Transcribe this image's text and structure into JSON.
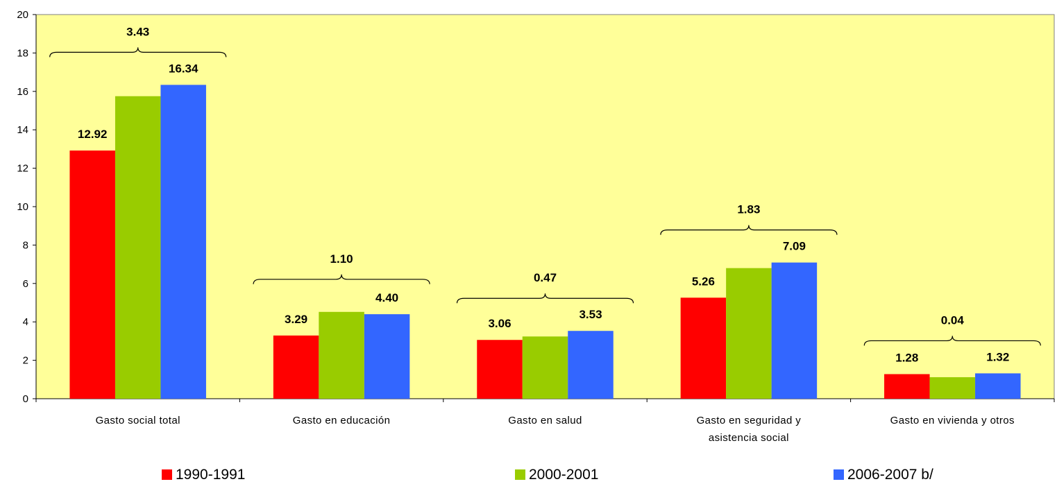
{
  "chart_data": {
    "type": "bar",
    "categories": [
      [
        "Gasto social total"
      ],
      [
        "Gasto en educación"
      ],
      [
        "Gasto en salud"
      ],
      [
        "Gasto en seguridad y",
        "asistencia social"
      ],
      [
        "Gasto en vivienda y otros"
      ]
    ],
    "series": [
      {
        "name": "1990-1991",
        "color": "#ff0000",
        "values": [
          12.92,
          3.29,
          3.06,
          5.26,
          1.28
        ],
        "labels": [
          "12.92",
          "3.29",
          "3.06",
          "5.26",
          "1.28"
        ]
      },
      {
        "name": "2000-2001",
        "color": "#99cc00",
        "values": [
          15.75,
          4.52,
          3.24,
          6.8,
          1.12
        ],
        "labels": [
          "",
          "",
          "",
          "",
          ""
        ]
      },
      {
        "name": "2006-2007 b/",
        "color": "#3366ff",
        "values": [
          16.34,
          4.4,
          3.53,
          7.09,
          1.32
        ],
        "labels": [
          "16.34",
          "4.40",
          "3.53",
          "7.09",
          "1.32"
        ]
      }
    ],
    "differences": [
      "3.43",
      "1.10",
      "0.47",
      "1.83",
      "0.04"
    ],
    "ylim": [
      0,
      20
    ],
    "yticks": [
      0,
      2,
      4,
      6,
      8,
      10,
      12,
      14,
      16,
      18,
      20
    ],
    "plot_background": "#ffff99",
    "grid": false,
    "legend_position": "bottom",
    "title": "",
    "xlabel": "",
    "ylabel": ""
  }
}
